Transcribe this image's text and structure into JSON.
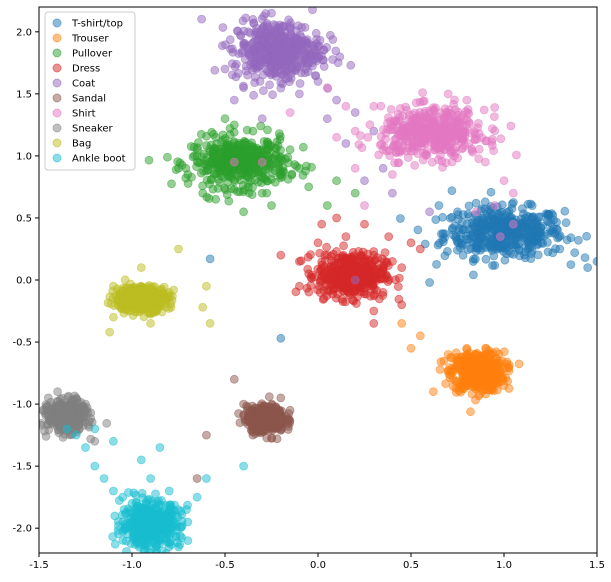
{
  "chart_data": {
    "type": "scatter",
    "title": "",
    "xlabel": "",
    "ylabel": "",
    "xlim": [
      -1.5,
      1.5
    ],
    "ylim": [
      -2.2,
      2.2
    ],
    "xticks": [
      -1.5,
      -1.0,
      -0.5,
      0.0,
      0.5,
      1.0,
      1.5
    ],
    "xtick_labels": [
      "-1.5",
      "-1.0",
      "-0.5",
      "0.0",
      "0.5",
      "1.0",
      "1.5"
    ],
    "yticks": [
      -2.0,
      -1.5,
      -1.0,
      -0.5,
      0.0,
      0.5,
      1.0,
      1.5,
      2.0
    ],
    "ytick_labels": [
      "-2.0",
      "-1.5",
      "-1.0",
      "-0.5",
      "0.0",
      "0.5",
      "1.0",
      "1.5",
      "2.0"
    ],
    "grid": false,
    "legend_position": "top-left",
    "marker_alpha": 0.5,
    "series": [
      {
        "name": "T-shirt/top",
        "color": "#1f77b4",
        "center": [
          1.0,
          0.38
        ],
        "spread": [
          0.16,
          0.1
        ],
        "points": [
          [
            0.75,
            0.55
          ],
          [
            0.85,
            0.62
          ],
          [
            1.1,
            0.42
          ],
          [
            1.2,
            0.3
          ],
          [
            1.3,
            0.25
          ],
          [
            1.38,
            0.22
          ],
          [
            0.95,
            0.48
          ],
          [
            1.05,
            0.35
          ],
          [
            1.15,
            0.5
          ],
          [
            0.65,
            0.6
          ],
          [
            1.45,
            0.1
          ],
          [
            1.5,
            0.15
          ],
          [
            0.9,
            0.3
          ],
          [
            1.25,
            0.4
          ],
          [
            0.6,
            -0.02
          ],
          [
            0.72,
            0.72
          ],
          [
            -0.2,
            -0.47
          ],
          [
            -0.58,
            0.17
          ],
          [
            1.4,
            0.32
          ],
          [
            0.8,
            0.45
          ]
        ]
      },
      {
        "name": "Trouser",
        "color": "#ff7f0e",
        "center": [
          0.86,
          -0.74
        ],
        "spread": [
          0.07,
          0.08
        ],
        "points": [
          [
            0.7,
            -0.6
          ],
          [
            0.75,
            -0.68
          ],
          [
            0.92,
            -0.82
          ],
          [
            0.98,
            -0.7
          ],
          [
            1.0,
            -0.85
          ],
          [
            0.55,
            -0.45
          ],
          [
            0.5,
            -0.55
          ],
          [
            0.62,
            -0.9
          ],
          [
            0.8,
            -0.55
          ],
          [
            0.93,
            -0.6
          ],
          [
            0.87,
            -0.92
          ],
          [
            0.45,
            -0.35
          ]
        ]
      },
      {
        "name": "Pullover",
        "color": "#2ca02c",
        "center": [
          -0.42,
          0.95
        ],
        "spread": [
          0.13,
          0.1
        ],
        "points": [
          [
            -0.7,
            0.85
          ],
          [
            -0.75,
            0.9
          ],
          [
            -0.62,
            0.7
          ],
          [
            -0.55,
            0.65
          ],
          [
            -0.3,
            0.7
          ],
          [
            -0.2,
            0.85
          ],
          [
            -0.1,
            0.9
          ],
          [
            -0.05,
            0.75
          ],
          [
            0.05,
            0.6
          ],
          [
            -0.45,
            1.25
          ],
          [
            -0.35,
            1.2
          ],
          [
            -0.5,
            1.3
          ],
          [
            -0.15,
            1.05
          ],
          [
            0.1,
            0.8
          ],
          [
            -0.25,
            0.6
          ],
          [
            -0.65,
            1.0
          ],
          [
            -0.4,
            0.55
          ],
          [
            0.2,
            0.7
          ],
          [
            -0.55,
            1.15
          ]
        ]
      },
      {
        "name": "Dress",
        "color": "#d62728",
        "center": [
          0.18,
          0.04
        ],
        "spread": [
          0.09,
          0.09
        ],
        "points": [
          [
            0.0,
            0.3
          ],
          [
            0.05,
            0.2
          ],
          [
            -0.05,
            0.05
          ],
          [
            0.3,
            0.2
          ],
          [
            0.35,
            -0.1
          ],
          [
            0.15,
            0.35
          ],
          [
            0.25,
            0.45
          ],
          [
            0.4,
            0.15
          ],
          [
            -0.1,
            0.15
          ],
          [
            0.45,
            -0.2
          ],
          [
            0.5,
            0.3
          ],
          [
            0.1,
            0.5
          ],
          [
            -0.2,
            0.2
          ],
          [
            0.3,
            -0.25
          ],
          [
            -0.1,
            -0.05
          ],
          [
            0.45,
            0.1
          ],
          [
            0.02,
            0.45
          ],
          [
            0.55,
            0.25
          ],
          [
            0.3,
            -0.35
          ],
          [
            0.38,
            0.35
          ]
        ]
      },
      {
        "name": "Coat",
        "color": "#9467bd",
        "center": [
          -0.22,
          1.85
        ],
        "spread": [
          0.12,
          0.12
        ],
        "points": [
          [
            -0.4,
            1.55
          ],
          [
            -0.45,
            1.45
          ],
          [
            -0.1,
            1.5
          ],
          [
            0.0,
            1.6
          ],
          [
            -0.35,
            2.1
          ],
          [
            -0.25,
            2.15
          ],
          [
            -0.15,
            2.05
          ],
          [
            0.1,
            1.45
          ],
          [
            0.2,
            1.35
          ],
          [
            -0.5,
            1.7
          ],
          [
            0.05,
            1.3
          ],
          [
            0.15,
            1.1
          ],
          [
            0.35,
            0.9
          ],
          [
            0.4,
            0.7
          ],
          [
            0.2,
            0.0
          ],
          [
            0.25,
            0.8
          ],
          [
            0.6,
            0.55
          ],
          [
            0.3,
            1.2
          ],
          [
            -0.05,
            1.75
          ],
          [
            -0.3,
            1.3
          ]
        ]
      },
      {
        "name": "Sandal",
        "color": "#8c564b",
        "center": [
          -0.28,
          -1.12
        ],
        "spread": [
          0.05,
          0.05
        ],
        "points": [
          [
            -0.4,
            -1.0
          ],
          [
            -0.35,
            -1.25
          ],
          [
            -0.2,
            -0.95
          ],
          [
            -0.15,
            -1.05
          ],
          [
            -0.42,
            -1.15
          ],
          [
            -0.22,
            -1.28
          ],
          [
            -0.45,
            -0.8
          ],
          [
            -0.6,
            -1.25
          ],
          [
            -0.65,
            -1.6
          ]
        ]
      },
      {
        "name": "Shirt",
        "color": "#e377c2",
        "center": [
          0.62,
          1.18
        ],
        "spread": [
          0.14,
          0.1
        ],
        "points": [
          [
            0.2,
            1.2
          ],
          [
            0.1,
            1.15
          ],
          [
            0.3,
            1.4
          ],
          [
            0.35,
            1.05
          ],
          [
            0.9,
            0.95
          ],
          [
            1.0,
            0.8
          ],
          [
            1.05,
            0.7
          ],
          [
            0.85,
            0.55
          ],
          [
            0.95,
            0.6
          ],
          [
            0.2,
            0.9
          ],
          [
            0.15,
            1.4
          ],
          [
            0.05,
            1.55
          ],
          [
            -0.15,
            1.35
          ],
          [
            0.7,
            1.5
          ],
          [
            0.8,
            1.45
          ],
          [
            -0.45,
            0.95
          ],
          [
            -0.3,
            0.95
          ],
          [
            0.4,
            0.85
          ],
          [
            0.25,
            0.6
          ],
          [
            1.05,
            0.45
          ],
          [
            0.98,
            0.35
          ]
        ]
      },
      {
        "name": "Sneaker",
        "color": "#7f7f7f",
        "center": [
          -1.35,
          -1.1
        ],
        "spread": [
          0.05,
          0.06
        ],
        "points": [
          [
            -1.45,
            -0.95
          ],
          [
            -1.4,
            -0.9
          ],
          [
            -1.3,
            -0.95
          ],
          [
            -1.25,
            -1.0
          ],
          [
            -1.3,
            -1.2
          ],
          [
            -1.45,
            -1.1
          ],
          [
            -1.48,
            -1.05
          ],
          [
            -1.2,
            -1.3
          ]
        ]
      },
      {
        "name": "Bag",
        "color": "#bcbd22",
        "center": [
          -0.95,
          -0.15
        ],
        "spread": [
          0.07,
          0.05
        ],
        "points": [
          [
            -0.95,
            0.1
          ],
          [
            -0.9,
            -0.35
          ],
          [
            -1.1,
            -0.05
          ],
          [
            -0.8,
            -0.1
          ],
          [
            -0.6,
            -0.05
          ],
          [
            -0.58,
            -0.35
          ],
          [
            -0.75,
            0.25
          ],
          [
            -1.1,
            -0.3
          ],
          [
            -1.12,
            -0.42
          ],
          [
            -0.62,
            -0.22
          ],
          [
            -1.02,
            -0.25
          ]
        ]
      },
      {
        "name": "Ankle boot",
        "color": "#17becf",
        "center": [
          -0.9,
          -1.97
        ],
        "spread": [
          0.08,
          0.09
        ],
        "points": [
          [
            -1.3,
            -1.25
          ],
          [
            -1.25,
            -1.35
          ],
          [
            -1.2,
            -1.5
          ],
          [
            -1.15,
            -1.6
          ],
          [
            -1.1,
            -1.7
          ],
          [
            -1.05,
            -1.75
          ],
          [
            -1.0,
            -1.8
          ],
          [
            -1.35,
            -1.2
          ],
          [
            -0.75,
            -1.85
          ],
          [
            -0.7,
            -1.95
          ],
          [
            -0.8,
            -1.7
          ],
          [
            -0.9,
            -1.6
          ],
          [
            -0.95,
            -1.45
          ],
          [
            -0.85,
            -1.35
          ],
          [
            -1.2,
            -1.2
          ],
          [
            -1.1,
            -1.3
          ],
          [
            -0.8,
            -2.15
          ],
          [
            -0.9,
            -2.2
          ],
          [
            -0.7,
            -2.1
          ],
          [
            -0.6,
            -1.6
          ],
          [
            -0.4,
            -1.5
          ],
          [
            -0.65,
            -1.75
          ]
        ]
      }
    ]
  }
}
